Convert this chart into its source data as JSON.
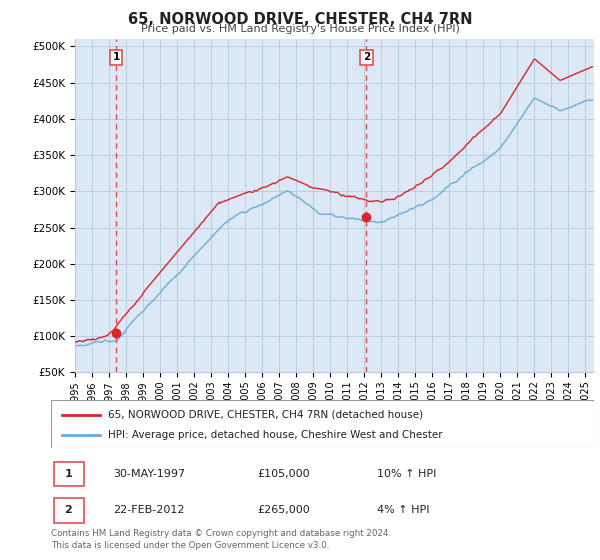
{
  "title": "65, NORWOOD DRIVE, CHESTER, CH4 7RN",
  "subtitle": "Price paid vs. HM Land Registry's House Price Index (HPI)",
  "ylabel_ticks": [
    "£50K",
    "£100K",
    "£150K",
    "£200K",
    "£250K",
    "£300K",
    "£350K",
    "£400K",
    "£450K",
    "£500K"
  ],
  "ytick_vals": [
    50000,
    100000,
    150000,
    200000,
    250000,
    300000,
    350000,
    400000,
    450000,
    500000
  ],
  "ylim": [
    60000,
    510000
  ],
  "xlim_start": 1995.0,
  "xlim_end": 2025.5,
  "xtick_years": [
    1995,
    1996,
    1997,
    1998,
    1999,
    2000,
    2001,
    2002,
    2003,
    2004,
    2005,
    2006,
    2007,
    2008,
    2009,
    2010,
    2011,
    2012,
    2013,
    2014,
    2015,
    2016,
    2017,
    2018,
    2019,
    2020,
    2021,
    2022,
    2023,
    2024,
    2025
  ],
  "hpi_color": "#6baed6",
  "price_color": "#d62728",
  "dashed_color": "#e05050",
  "bg_color": "#dce8f5",
  "grid_color": "#b8cfe0",
  "sale1_x": 1997.41,
  "sale1_y": 105000,
  "sale2_x": 2012.13,
  "sale2_y": 265000,
  "legend_label1": "65, NORWOOD DRIVE, CHESTER, CH4 7RN (detached house)",
  "legend_label2": "HPI: Average price, detached house, Cheshire West and Chester",
  "table_rows": [
    {
      "num": "1",
      "date": "30-MAY-1997",
      "price": "£105,000",
      "hpi": "10% ↑ HPI"
    },
    {
      "num": "2",
      "date": "22-FEB-2012",
      "price": "£265,000",
      "hpi": "4% ↑ HPI"
    }
  ],
  "footer": "Contains HM Land Registry data © Crown copyright and database right 2024.\nThis data is licensed under the Open Government Licence v3.0."
}
